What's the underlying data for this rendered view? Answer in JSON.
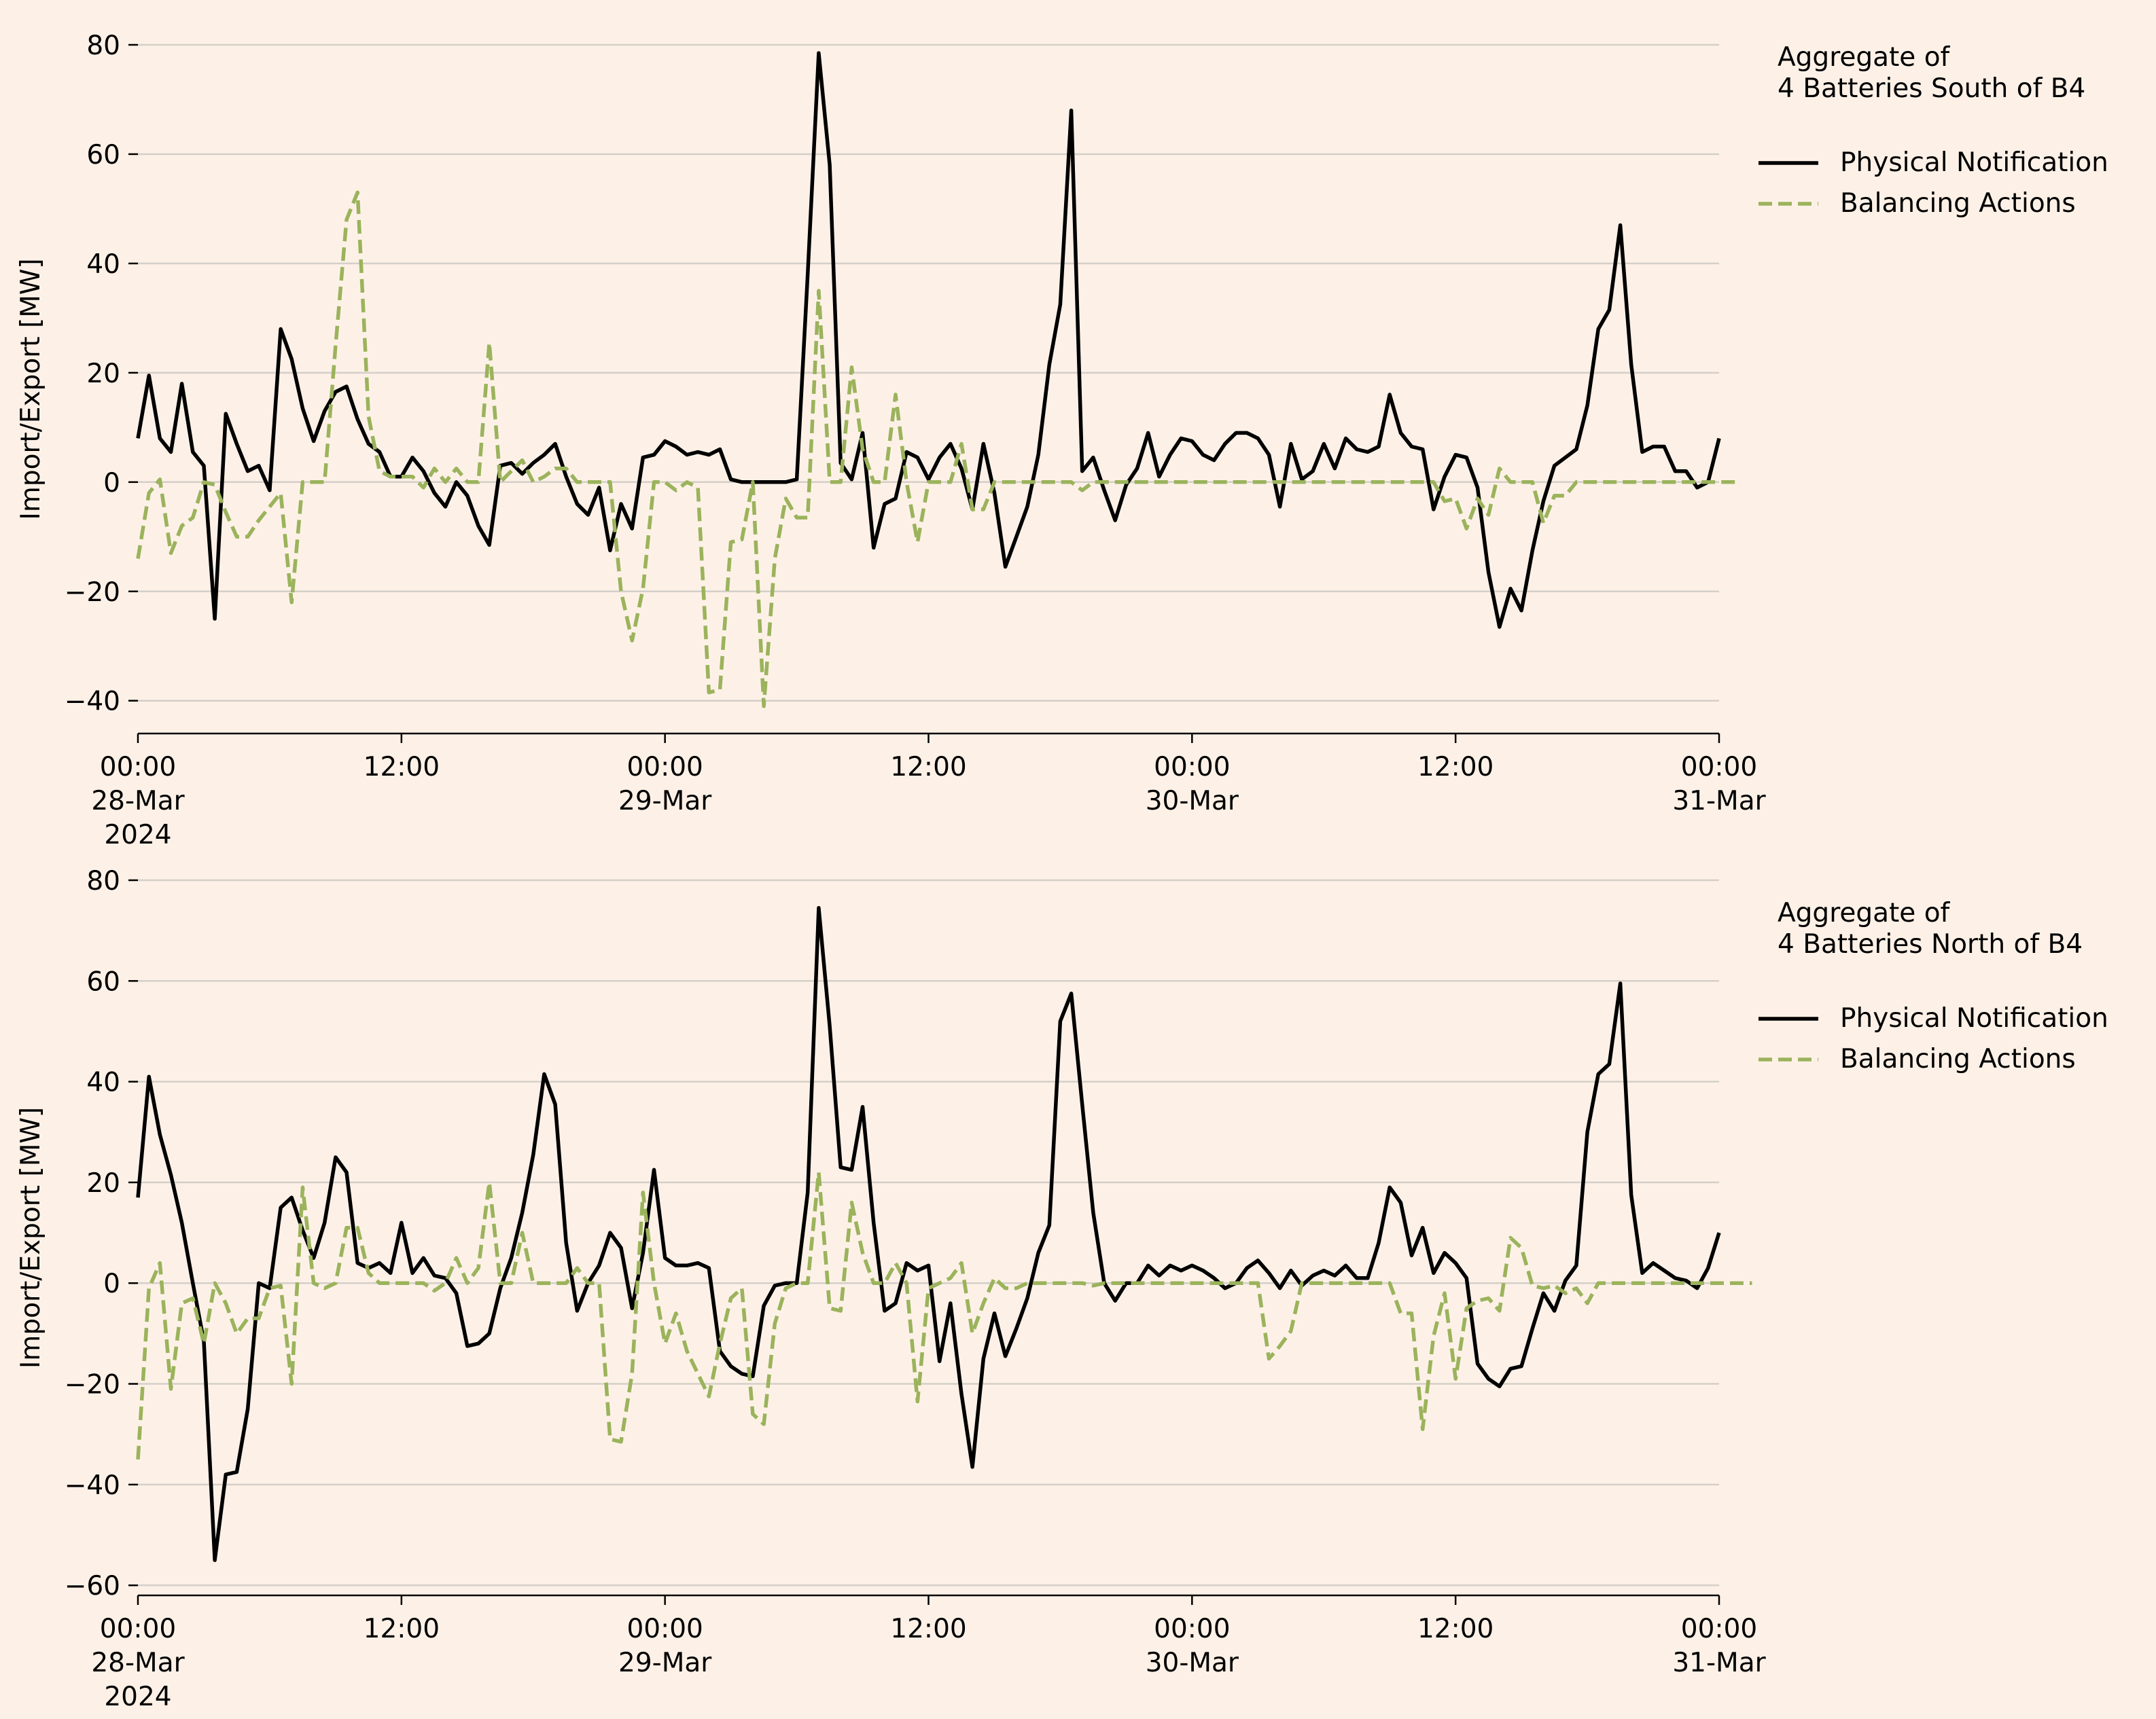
{
  "colors": {
    "background": "#fdf1e7",
    "physical_notification": "#000000",
    "balancing_actions": "#9bb35c",
    "grid": "#d4cfc8",
    "axis": "#000000"
  },
  "chart_data": [
    {
      "type": "line",
      "legend_title": "Aggregate of\n4 Batteries South of B4",
      "legend_placement": "outside-right-top",
      "ylabel": "Import/Export [MW]",
      "ylim": [
        -46,
        80
      ],
      "yticks": [
        -40,
        -20,
        0,
        20,
        40,
        60,
        80
      ],
      "xlim": [
        "2024-03-28T00:00",
        "2024-03-31T00:00"
      ],
      "x_step": "30min",
      "xticks": [
        {
          "x": "2024-03-28T00:00",
          "label": "00:00\n28-Mar\n2024"
        },
        {
          "x": "2024-03-28T12:00",
          "label": "12:00"
        },
        {
          "x": "2024-03-29T00:00",
          "label": "00:00\n29-Mar"
        },
        {
          "x": "2024-03-29T12:00",
          "label": "12:00"
        },
        {
          "x": "2024-03-30T00:00",
          "label": "00:00\n30-Mar"
        },
        {
          "x": "2024-03-30T12:00",
          "label": "12:00"
        },
        {
          "x": "2024-03-31T00:00",
          "label": "00:00\n31-Mar"
        }
      ],
      "grid": "horizontal",
      "series": [
        {
          "name": "Physical Notification",
          "style": "solid",
          "values": [
            8,
            19.5,
            8,
            5.5,
            18,
            5.5,
            3,
            -25,
            12.5,
            7,
            2,
            3,
            -1.5,
            28,
            22.5,
            13.5,
            7.5,
            13,
            16.5,
            17.5,
            11.5,
            7,
            5.5,
            1,
            1,
            4.5,
            2,
            -2,
            -4.5,
            0,
            -2.5,
            -8,
            -11.5,
            3,
            3.5,
            1.5,
            3.5,
            5,
            7,
            1,
            -4,
            -6,
            -1,
            -12.5,
            -4,
            -8.5,
            4.5,
            5,
            7.5,
            6.5,
            5,
            5.5,
            5,
            6,
            0.5,
            0,
            0,
            0,
            0,
            0,
            0.5,
            38,
            78.5,
            58,
            3.5,
            0.5,
            9,
            -12,
            -4,
            -3,
            5.5,
            4.5,
            0.5,
            4.5,
            7,
            2.5,
            -5,
            7,
            -2,
            -15.5,
            -10,
            -4.5,
            5,
            21.5,
            32.5,
            68,
            2,
            4.5,
            -1.5,
            -7,
            -0.5,
            2.5,
            9,
            1,
            5,
            8,
            7.5,
            5,
            4,
            7,
            9,
            9,
            8,
            5,
            -4.5,
            7,
            0.5,
            2,
            7,
            2.5,
            8,
            6,
            5.5,
            6.5,
            16,
            9,
            6.5,
            6,
            -5,
            1,
            5,
            4.5,
            -1,
            -16.5,
            -26.5,
            -19.5,
            -23.5,
            -12.5,
            -3.5,
            3,
            4.5,
            6,
            14,
            28,
            31.5,
            47,
            21.5,
            5.5,
            6.5,
            6.5,
            2,
            2,
            -1,
            0,
            8
          ]
        },
        {
          "name": "Balancing Actions",
          "style": "dashed",
          "values": [
            -14,
            -2,
            0.5,
            -13,
            -8,
            -6.5,
            0,
            -0.5,
            -5.5,
            -10,
            -10,
            -7,
            -4.5,
            -2,
            -22,
            0,
            0,
            0,
            25,
            48,
            53,
            12,
            2,
            1,
            1,
            1,
            -1,
            2.5,
            0,
            2.5,
            0,
            0,
            25.5,
            0,
            2,
            4,
            0,
            1,
            2.5,
            2.5,
            0,
            0,
            0,
            0,
            -20,
            -29,
            -19.5,
            0,
            0,
            -1.5,
            0,
            -1,
            -38.5,
            -38,
            -11,
            -10.5,
            0,
            -41,
            -14,
            -3,
            -6.5,
            -6.5,
            35,
            0,
            0,
            21,
            6,
            0,
            0,
            16,
            0,
            -11,
            0,
            0,
            0,
            7,
            -5,
            -5,
            0,
            0,
            0,
            0,
            0,
            0,
            0,
            0,
            -1.5,
            0,
            0,
            0,
            0,
            0,
            0,
            0,
            0,
            0,
            0,
            0,
            0,
            0,
            0,
            0,
            0,
            0,
            0,
            0,
            0,
            0,
            0,
            0,
            0,
            0,
            0,
            0,
            0,
            0,
            0,
            0,
            0,
            -3.5,
            -3,
            -8.5,
            -3,
            -6,
            2.5,
            0,
            0,
            0,
            -7.5,
            -2.5,
            -2.5,
            0,
            0,
            0,
            0,
            0,
            0,
            0,
            0,
            0,
            0,
            0,
            0,
            0,
            0,
            0,
            0
          ]
        }
      ]
    },
    {
      "type": "line",
      "legend_title": "Aggregate of\n4 Batteries North of B4",
      "legend_placement": "outside-right-top",
      "ylabel": "Import/Export [MW]",
      "ylim": [
        -62,
        80
      ],
      "yticks": [
        -60,
        -40,
        -20,
        0,
        20,
        40,
        60,
        80
      ],
      "xlim": [
        "2024-03-28T00:00",
        "2024-03-31T00:00"
      ],
      "x_step": "30min",
      "xticks": [
        {
          "x": "2024-03-28T00:00",
          "label": "00:00\n28-Mar\n2024"
        },
        {
          "x": "2024-03-28T12:00",
          "label": "12:00"
        },
        {
          "x": "2024-03-29T00:00",
          "label": "00:00\n29-Mar"
        },
        {
          "x": "2024-03-29T12:00",
          "label": "12:00"
        },
        {
          "x": "2024-03-30T00:00",
          "label": "00:00\n30-Mar"
        },
        {
          "x": "2024-03-30T12:00",
          "label": "12:00"
        },
        {
          "x": "2024-03-31T00:00",
          "label": "00:00\n31-Mar"
        }
      ],
      "grid": "horizontal",
      "series": [
        {
          "name": "Physical Notification",
          "style": "solid",
          "values": [
            17,
            41,
            29.5,
            21.5,
            12,
            0,
            -11.5,
            -55,
            -38,
            -37.5,
            -25,
            0,
            -1,
            15,
            17,
            10.5,
            5,
            12,
            25,
            22,
            4,
            3,
            4,
            2,
            12,
            2,
            5,
            1.5,
            1,
            -2,
            -12.5,
            -12,
            -10,
            -1,
            5,
            14,
            25.5,
            41.5,
            35.5,
            8,
            -5.5,
            0,
            3.5,
            10,
            7,
            -5,
            6,
            22.5,
            5,
            3.5,
            3.5,
            4,
            3,
            -13.5,
            -16.5,
            -18,
            -18.5,
            -4.5,
            -0.5,
            0,
            0,
            18,
            74.5,
            51,
            23,
            22.5,
            35,
            12,
            -5.5,
            -4,
            4,
            2.5,
            3.5,
            -15.5,
            -4,
            -22,
            -36.5,
            -15,
            -6,
            -14.5,
            -9,
            -3,
            6,
            11.5,
            52,
            57.5,
            35.5,
            14,
            0,
            -3.5,
            0,
            0,
            3.5,
            1.5,
            3.5,
            2.5,
            3.5,
            2.5,
            1,
            -1,
            0,
            3,
            4.5,
            2,
            -1,
            2.5,
            -0.5,
            1.5,
            2.5,
            1.5,
            3.5,
            1,
            1,
            8,
            19,
            16,
            5.5,
            11,
            2,
            6,
            4,
            1,
            -16,
            -19,
            -20.5,
            -17,
            -16.5,
            -9,
            -2,
            -5.5,
            0.5,
            3.5,
            30,
            41.5,
            43.5,
            59.5,
            17.5,
            2,
            4,
            2.5,
            1,
            0.5,
            -1,
            3,
            10
          ]
        },
        {
          "name": "Balancing Actions",
          "style": "dashed",
          "values": [
            -35,
            -1,
            4,
            -21,
            -4,
            -3,
            -12,
            0,
            -4,
            -10,
            -7,
            -7,
            -1,
            -0.5,
            -20,
            19,
            0,
            -1,
            0,
            11,
            11,
            2,
            0,
            0,
            0,
            0,
            0,
            -1.5,
            0,
            5,
            0,
            3,
            20,
            0,
            0,
            10,
            0,
            0,
            0,
            0,
            3,
            0,
            0,
            -31,
            -31.5,
            -18,
            18,
            0,
            -12,
            -6,
            -13.5,
            -18,
            -22.5,
            -12,
            -3,
            -1,
            -26,
            -28,
            -8,
            -1,
            0,
            0,
            22,
            -5,
            -5.5,
            16,
            6,
            0,
            0,
            4,
            0,
            -23.5,
            -1,
            0,
            1,
            4,
            -10,
            -4,
            1,
            -1,
            -1,
            0,
            0,
            0,
            0,
            0,
            0,
            -0.5,
            0,
            0,
            0,
            0,
            0,
            0,
            0,
            0,
            0,
            0,
            0,
            0,
            0,
            0,
            0,
            -15,
            -12.5,
            -9.5,
            0,
            0,
            0,
            0,
            0,
            0,
            0,
            0,
            0,
            -6,
            -6,
            -29,
            -10.5,
            -2,
            -19,
            -5,
            -3.5,
            -3,
            -5.5,
            9,
            7,
            -0.5,
            -1,
            -0.5,
            -2,
            -1,
            -4,
            0,
            0,
            0,
            0,
            0,
            0,
            0,
            0,
            0,
            0,
            0,
            0,
            0,
            0,
            0
          ]
        }
      ]
    }
  ]
}
